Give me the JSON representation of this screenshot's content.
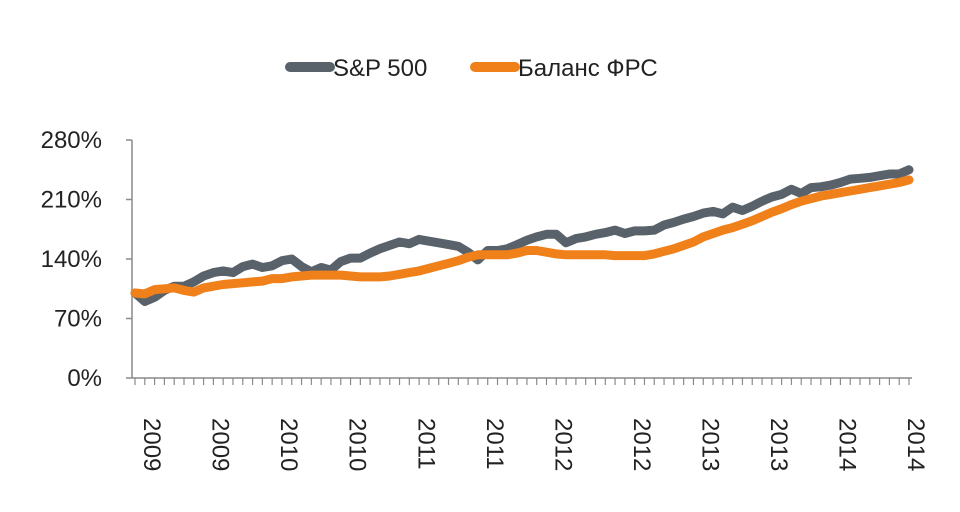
{
  "chart_data": {
    "type": "line",
    "title": "",
    "xlabel": "",
    "ylabel": "",
    "ylim": [
      0,
      280
    ],
    "yticks": [
      0,
      70,
      140,
      210,
      280
    ],
    "ytick_labels": [
      "0%",
      "70%",
      "140%",
      "210%",
      "280%"
    ],
    "xtick_labels": [
      "2009",
      "2009",
      "2010",
      "2010",
      "2011",
      "2011",
      "2012",
      "2012",
      "2013",
      "2013",
      "2014",
      "2014"
    ],
    "grid": false,
    "legend_position": "top-center",
    "series": [
      {
        "name": "S&P 500",
        "color": "#59626a",
        "values": [
          100,
          90,
          95,
          103,
          108,
          108,
          113,
          120,
          124,
          126,
          124,
          131,
          134,
          130,
          132,
          138,
          140,
          131,
          125,
          130,
          127,
          137,
          141,
          141,
          147,
          152,
          156,
          160,
          158,
          163,
          161,
          159,
          157,
          155,
          148,
          139,
          150,
          150,
          152,
          157,
          162,
          166,
          169,
          169,
          159,
          164,
          166,
          169,
          171,
          174,
          170,
          173,
          173,
          174,
          180,
          183,
          187,
          190,
          194,
          196,
          193,
          201,
          197,
          202,
          208,
          213,
          216,
          222,
          217,
          224,
          225,
          227,
          230,
          234,
          235,
          236,
          238,
          240,
          240,
          245
        ]
      },
      {
        "name": "Баланс ФРС",
        "color": "#f0801a",
        "values": [
          100,
          99,
          104,
          105,
          106,
          103,
          101,
          106,
          108,
          110,
          111,
          112,
          113,
          114,
          117,
          117,
          119,
          120,
          121,
          121,
          121,
          121,
          120,
          119,
          119,
          119,
          120,
          122,
          124,
          126,
          129,
          132,
          135,
          138,
          142,
          145,
          145,
          145,
          145,
          147,
          150,
          150,
          148,
          146,
          145,
          145,
          145,
          145,
          145,
          144,
          144,
          144,
          144,
          146,
          149,
          152,
          156,
          160,
          166,
          170,
          174,
          177,
          181,
          185,
          190,
          195,
          199,
          204,
          208,
          211,
          214,
          216,
          218,
          220,
          222,
          224,
          226,
          228,
          230,
          233
        ]
      }
    ]
  }
}
